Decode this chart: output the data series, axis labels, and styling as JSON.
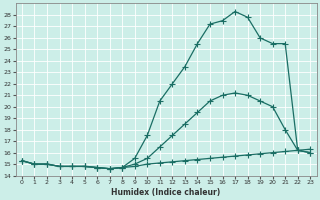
{
  "title": "",
  "xlabel": "Humidex (Indice chaleur)",
  "xlim": [
    -0.5,
    23.5
  ],
  "ylim": [
    14,
    29
  ],
  "yticks": [
    14,
    15,
    16,
    17,
    18,
    19,
    20,
    21,
    22,
    23,
    24,
    25,
    26,
    27,
    28
  ],
  "xticks": [
    0,
    1,
    2,
    3,
    4,
    5,
    6,
    7,
    8,
    9,
    10,
    11,
    12,
    13,
    14,
    15,
    16,
    17,
    18,
    19,
    20,
    21,
    22,
    23
  ],
  "bg_color": "#cceee8",
  "grid_color": "#b0ddd6",
  "line_color": "#1a6e64",
  "series1_x": [
    0,
    1,
    2,
    3,
    4,
    5,
    6,
    7,
    8,
    9,
    10,
    11,
    12,
    13,
    14,
    15,
    16,
    17,
    18,
    19,
    20,
    21,
    22,
    23
  ],
  "series1_y": [
    15.3,
    15.0,
    15.0,
    14.8,
    14.8,
    14.8,
    14.7,
    14.6,
    14.7,
    14.8,
    15.0,
    15.1,
    15.2,
    15.3,
    15.4,
    15.5,
    15.6,
    15.7,
    15.8,
    15.9,
    16.0,
    16.1,
    16.2,
    16.3
  ],
  "series2_x": [
    0,
    1,
    2,
    3,
    4,
    5,
    6,
    7,
    8,
    9,
    10,
    11,
    12,
    13,
    14,
    15,
    16,
    17,
    18,
    19,
    20,
    21,
    22,
    23
  ],
  "series2_y": [
    15.3,
    15.0,
    15.0,
    14.8,
    14.8,
    14.8,
    14.7,
    14.6,
    14.7,
    15.0,
    15.5,
    16.5,
    17.5,
    18.5,
    19.5,
    20.5,
    21.0,
    21.2,
    21.0,
    20.5,
    20.0,
    18.0,
    16.2,
    16.0
  ],
  "series3_x": [
    0,
    1,
    2,
    3,
    4,
    5,
    6,
    7,
    8,
    9,
    10,
    11,
    12,
    13,
    14,
    15,
    16,
    17,
    18,
    19,
    20,
    21,
    22,
    23
  ],
  "series3_y": [
    15.3,
    15.0,
    15.0,
    14.8,
    14.8,
    14.8,
    14.7,
    14.6,
    14.7,
    15.5,
    17.5,
    20.5,
    22.0,
    23.5,
    25.5,
    27.2,
    27.5,
    28.3,
    27.8,
    26.0,
    25.5,
    25.5,
    16.2,
    16.0
  ]
}
